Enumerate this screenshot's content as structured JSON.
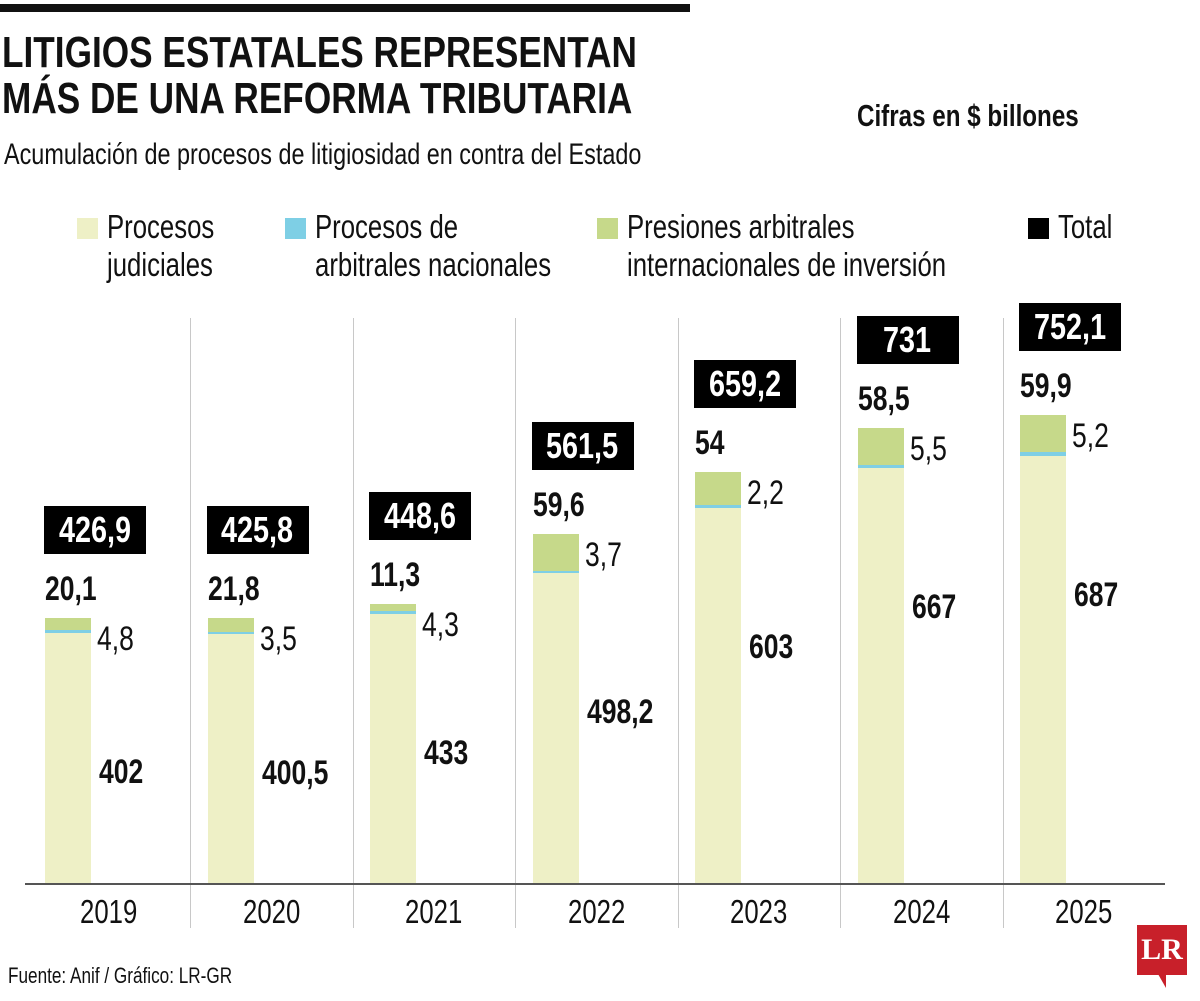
{
  "header": {
    "title_line1": "LITIGIOS ESTATALES REPRESENTAN",
    "title_line2": "MÁS DE UNA REFORMA TRIBUTARIA",
    "subtitle": "Acumulación de procesos de litigiosidad en contra del Estado",
    "units": "Cifras en $ billones"
  },
  "legend": [
    {
      "line1": "Procesos",
      "line2": "judiciales",
      "color": "#eef0c6"
    },
    {
      "line1": "Procesos de",
      "line2": "arbitrales nacionales",
      "color": "#7ecfe5"
    },
    {
      "line1": "Presiones arbitrales",
      "line2": "internacionales de inversión",
      "color": "#c6d98a"
    },
    {
      "line1": "Total",
      "line2": "",
      "color": "#000000"
    }
  ],
  "chart_data": {
    "type": "bar",
    "stacked": true,
    "title": "LITIGIOS ESTATALES REPRESENTAN MÁS DE UNA REFORMA TRIBUTARIA",
    "subtitle": "Acumulación de procesos de litigiosidad en contra del Estado",
    "units": "Cifras en $ billones",
    "categories": [
      "2019",
      "2020",
      "2021",
      "2022",
      "2023",
      "2024",
      "2025"
    ],
    "series": [
      {
        "name": "Procesos judiciales",
        "values": [
          402,
          400.5,
          433,
          498.2,
          603,
          667,
          687
        ],
        "labels": [
          "402",
          "400,5",
          "433",
          "498,2",
          "603",
          "667",
          "687"
        ],
        "color": "#eef0c6"
      },
      {
        "name": "Procesos de arbitrales nacionales",
        "values": [
          4.8,
          3.5,
          4.3,
          3.7,
          2.2,
          5.5,
          5.2
        ],
        "labels": [
          "4,8",
          "3,5",
          "4,3",
          "3,7",
          "2,2",
          "5,5",
          "5,2"
        ],
        "color": "#7ecfe5"
      },
      {
        "name": "Presiones arbitrales internacionales de inversión",
        "values": [
          20.1,
          21.8,
          11.3,
          59.6,
          54,
          58.5,
          59.9
        ],
        "labels": [
          "20,1",
          "21,8",
          "11,3",
          "59,6",
          "54",
          "58,5",
          "59,9"
        ],
        "color": "#c6d98a"
      }
    ],
    "totals": {
      "name": "Total",
      "values": [
        426.9,
        425.8,
        448.6,
        561.5,
        659.2,
        731,
        752.1
      ],
      "labels": [
        "426,9",
        "425,8",
        "448,6",
        "561,5",
        "659,2",
        "731",
        "752,1"
      ]
    },
    "ylim": [
      0,
      752.1
    ],
    "grid": false,
    "legend_position": "top"
  },
  "footer": {
    "source": "Fuente: Anif / Gráfico: LR-GR",
    "logo": "LR"
  }
}
